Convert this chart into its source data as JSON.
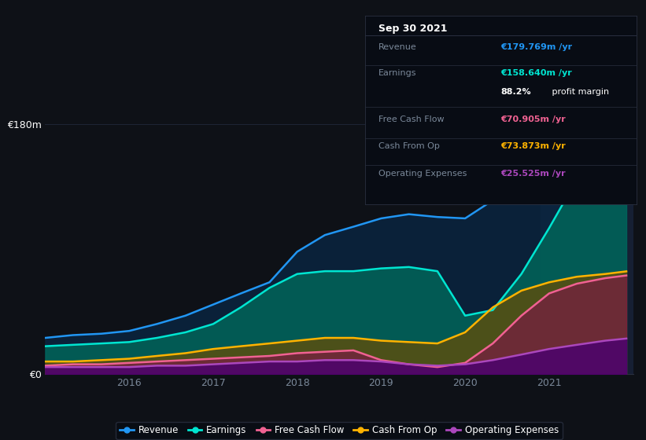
{
  "bg_color": "#0e1117",
  "chart_bg": "#0e1117",
  "y_label_top": "€180m",
  "y_label_bottom": "€0",
  "xlabel_years": [
    "2016",
    "2017",
    "2018",
    "2019",
    "2020",
    "2021"
  ],
  "x": [
    2015.0,
    2015.33,
    2015.67,
    2016.0,
    2016.33,
    2016.67,
    2017.0,
    2017.33,
    2017.67,
    2018.0,
    2018.33,
    2018.67,
    2019.0,
    2019.33,
    2019.67,
    2020.0,
    2020.33,
    2020.67,
    2021.0,
    2021.33,
    2021.67,
    2021.92
  ],
  "revenue": [
    26,
    28,
    29,
    31,
    36,
    42,
    50,
    58,
    66,
    88,
    100,
    106,
    112,
    115,
    113,
    112,
    125,
    148,
    170,
    176,
    179,
    179.769
  ],
  "earnings": [
    20,
    21,
    22,
    23,
    26,
    30,
    36,
    48,
    62,
    72,
    74,
    74,
    76,
    77,
    74,
    42,
    46,
    72,
    105,
    140,
    155,
    158.64
  ],
  "free_cash_flow": [
    6,
    7,
    7,
    8,
    9,
    10,
    11,
    12,
    13,
    15,
    16,
    17,
    10,
    7,
    5,
    8,
    22,
    42,
    58,
    65,
    69,
    70.905
  ],
  "cash_from_op": [
    9,
    9,
    10,
    11,
    13,
    15,
    18,
    20,
    22,
    24,
    26,
    26,
    24,
    23,
    22,
    30,
    48,
    60,
    66,
    70,
    72,
    73.873
  ],
  "operating_expenses": [
    5,
    5,
    5,
    5,
    6,
    6,
    7,
    8,
    9,
    9,
    10,
    10,
    9,
    7,
    6,
    7,
    10,
    14,
    18,
    21,
    24,
    25.525
  ],
  "color_revenue": "#2196f3",
  "color_earnings": "#00e5d1",
  "color_free_cash_flow": "#f06292",
  "color_cash_from_op": "#ffb300",
  "color_operating_expenses": "#ab47bc",
  "fill_revenue": "#0a2540",
  "fill_earnings": "#00695c",
  "fill_free_cash_flow": "#880e4f",
  "fill_cash_from_op": "#6d4c00",
  "fill_operating_expenses": "#4a0072",
  "info_box": {
    "title": "Sep 30 2021",
    "rows": [
      {
        "label": "Revenue",
        "value": "€179.769m /yr",
        "value_color": "#2196f3"
      },
      {
        "label": "Earnings",
        "value": "€158.640m /yr",
        "value_color": "#00e5d1"
      },
      {
        "label": "",
        "value": "88.2%",
        "value_color": "#ffffff",
        "suffix": " profit margin"
      },
      {
        "label": "Free Cash Flow",
        "value": "€70.905m /yr",
        "value_color": "#f06292"
      },
      {
        "label": "Cash From Op",
        "value": "€73.873m /yr",
        "value_color": "#ffb300"
      },
      {
        "label": "Operating Expenses",
        "value": "€25.525m /yr",
        "value_color": "#ab47bc"
      }
    ]
  },
  "ylim": [
    0,
    190
  ],
  "xlim": [
    2015.0,
    2022.0
  ],
  "grid_color": "#1e2535",
  "line_width": 1.8,
  "highlight_x": 2021.0,
  "highlight_color": "#1a2540",
  "highlight_alpha": 0.7
}
